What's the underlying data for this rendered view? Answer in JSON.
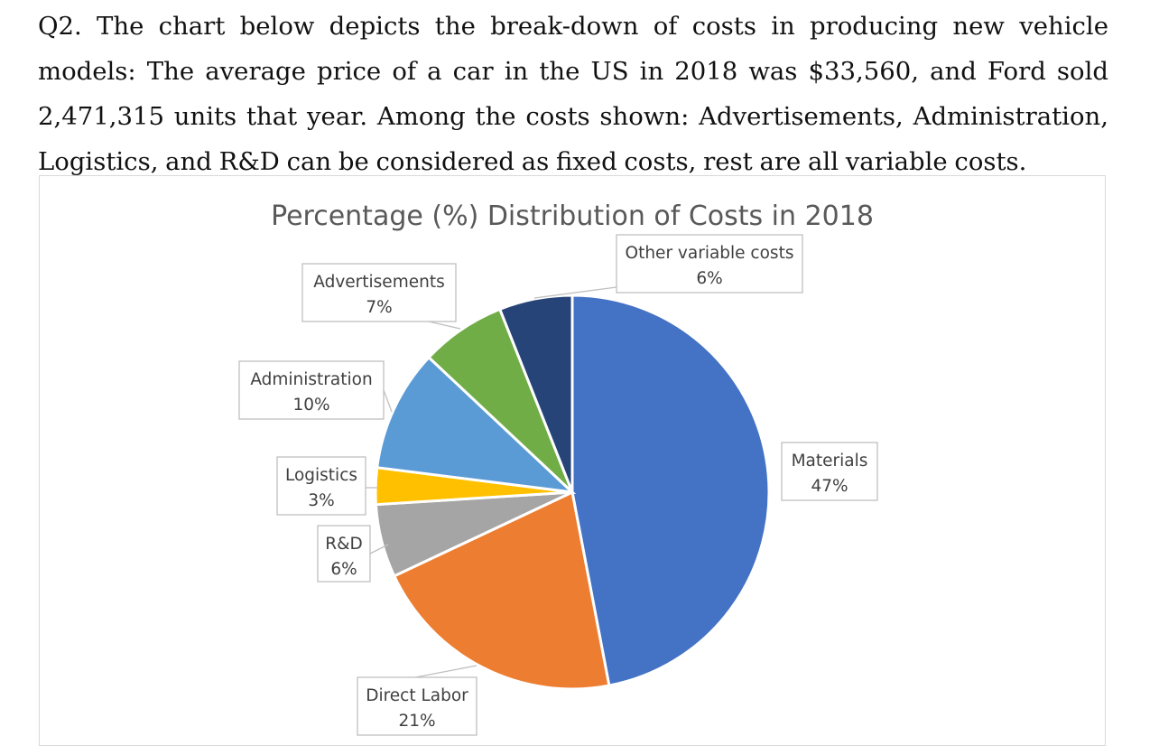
{
  "question": {
    "text": "Q2. The chart below depicts the break-down of costs in producing new vehicle models: The average price of a car in the US in 2018 was $33,560, and Ford sold 2,471,315 units that year. Among the costs shown: Advertisements, Administration, Logistics, and R&D can be considered as fixed costs, rest are all variable costs."
  },
  "chart_data": {
    "type": "pie",
    "title": "Percentage (%) Distribution of Costs in 2018",
    "slices": [
      {
        "label": "Materials",
        "value": 47,
        "value_label": "47%",
        "color": "#4472C4"
      },
      {
        "label": "Direct Labor",
        "value": 21,
        "value_label": "21%",
        "color": "#ED7D31"
      },
      {
        "label": "R&D",
        "value": 6,
        "value_label": "6%",
        "color": "#A5A5A5"
      },
      {
        "label": "Logistics",
        "value": 3,
        "value_label": "3%",
        "color": "#FFC000"
      },
      {
        "label": "Administration",
        "value": 10,
        "value_label": "10%",
        "color": "#5B9BD5"
      },
      {
        "label": "Advertisements",
        "value": 7,
        "value_label": "7%",
        "color": "#70AD47"
      },
      {
        "label": "Other variable costs",
        "value": 6,
        "value_label": "6%",
        "color": "#264478"
      }
    ]
  }
}
